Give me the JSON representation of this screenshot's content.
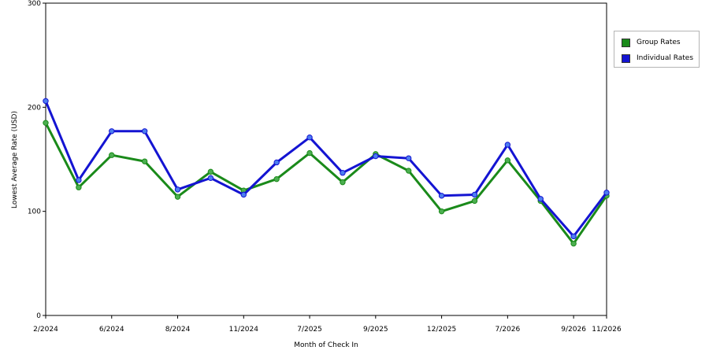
{
  "chart_data": {
    "type": "line",
    "xlabel": "Month of Check In",
    "ylabel": "Lowest Average Rate (USD)",
    "ylim": [
      0,
      300
    ],
    "yticks": [
      0,
      100,
      200,
      300
    ],
    "grid": "horizontal-dashed",
    "legend_position": "right",
    "x_tick_labels": [
      {
        "index": 0,
        "label": "2/2024"
      },
      {
        "index": 2,
        "label": "6/2024"
      },
      {
        "index": 4,
        "label": "8/2024"
      },
      {
        "index": 6,
        "label": "11/2024"
      },
      {
        "index": 8,
        "label": "7/2025"
      },
      {
        "index": 10,
        "label": "9/2025"
      },
      {
        "index": 12,
        "label": "12/2025"
      },
      {
        "index": 14,
        "label": "7/2026"
      },
      {
        "index": 16,
        "label": "9/2026"
      },
      {
        "index": 17,
        "label": "11/2026"
      }
    ],
    "point_count": 18,
    "series": [
      {
        "name": "Group Rates",
        "color": "#1a8a1a",
        "marker_color": "#4caf50",
        "values": [
          185,
          123,
          154,
          148,
          114,
          138,
          120,
          131,
          156,
          128,
          155,
          139,
          100,
          110,
          149,
          110,
          69,
          115
        ]
      },
      {
        "name": "Individual Rates",
        "color": "#1414d2",
        "marker_color": "#4d7ef0",
        "values": [
          206,
          130,
          177,
          177,
          121,
          132,
          116,
          147,
          171,
          137,
          153,
          151,
          115,
          116,
          164,
          112,
          76,
          118
        ]
      }
    ]
  }
}
